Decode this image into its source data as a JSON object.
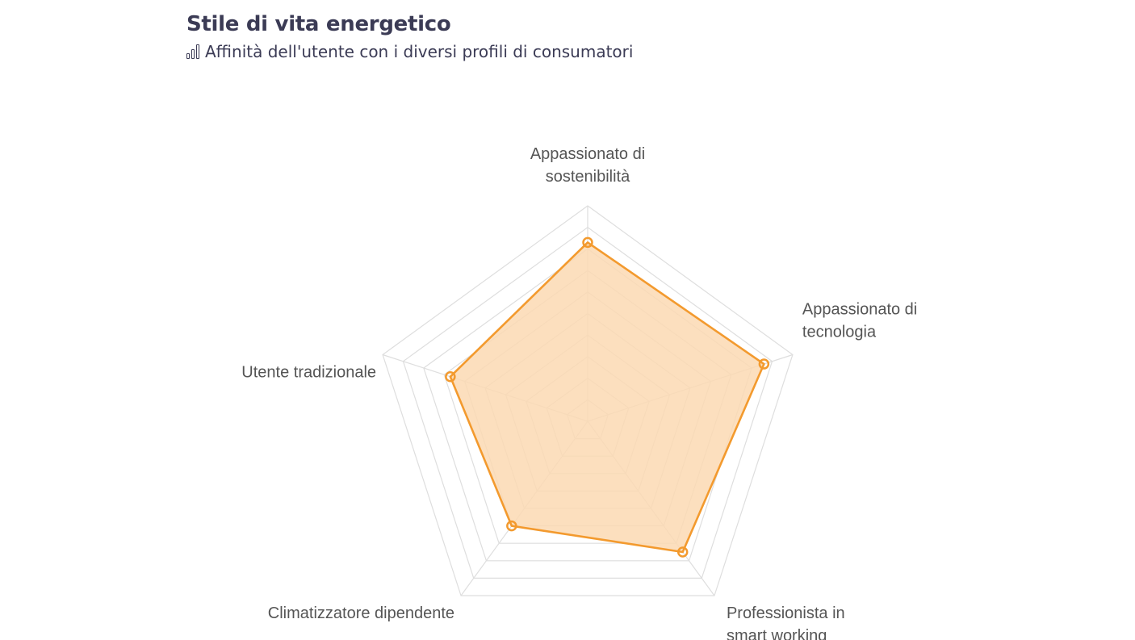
{
  "header": {
    "title": "Stile di vita energetico",
    "subtitle": "Affinità dell'utente con i diversi profili di consumatori",
    "subtitle_icon": "bar-chart-icon"
  },
  "chart_data": {
    "type": "radar",
    "categories": [
      "Appassionato di sostenibilità",
      "Appassionato di tecnologia",
      "Professionista in smart working",
      "Climatizzatore dipendente",
      "Utente tradizionale"
    ],
    "category_lines": [
      [
        "Appassionato di",
        "sostenibilità"
      ],
      [
        "Appassionato di",
        "tecnologia"
      ],
      [
        "Professionista in",
        "smart working"
      ],
      [
        "Climatizzatore dipendente"
      ],
      [
        "Utente tradizionale"
      ]
    ],
    "series": [
      {
        "values": [
          83,
          86,
          75,
          60,
          67
        ],
        "color": "#f39a2e",
        "fill": "#fbd9b3"
      }
    ],
    "range": [
      0,
      100
    ],
    "grid_rings": 10,
    "grid_color": "#dedede",
    "legend": "none"
  }
}
